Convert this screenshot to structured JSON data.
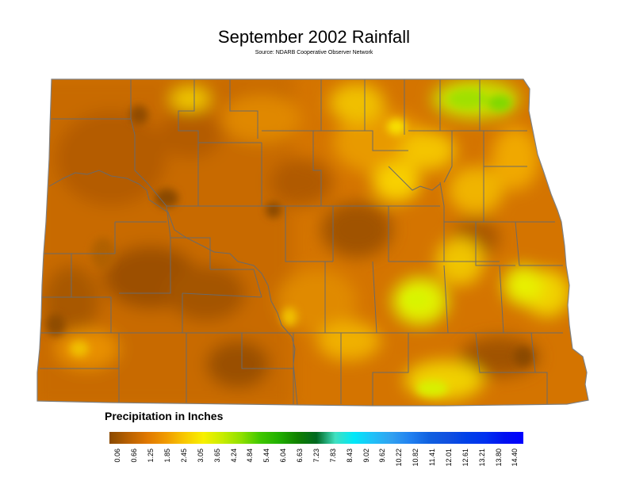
{
  "title": "September 2002 Rainfall",
  "source": "Source: NDARB Cooperative Observer Network",
  "legend": {
    "title": "Precipitation in Inches",
    "colors": [
      "#8a4a00",
      "#b86000",
      "#e07800",
      "#f09a00",
      "#f8c800",
      "#f8f000",
      "#c8ec00",
      "#90e000",
      "#40c800",
      "#20b000",
      "#108000",
      "#006820",
      "#40e0c0",
      "#00e8f8",
      "#20c0f8",
      "#30a0f0",
      "#2080f0",
      "#1060e0",
      "#1050e0",
      "#0040e8",
      "#0030f0",
      "#0010f0",
      "#0000ff"
    ],
    "ticks": [
      "0.06",
      "0.66",
      "1.25",
      "1.85",
      "2.45",
      "3.05",
      "3.65",
      "4.24",
      "4.84",
      "5.44",
      "6.04",
      "6.63",
      "7.23",
      "7.83",
      "8.43",
      "9.02",
      "9.62",
      "10.22",
      "10.82",
      "11.41",
      "12.01",
      "12.61",
      "13.21",
      "13.80",
      "14.40"
    ]
  }
}
